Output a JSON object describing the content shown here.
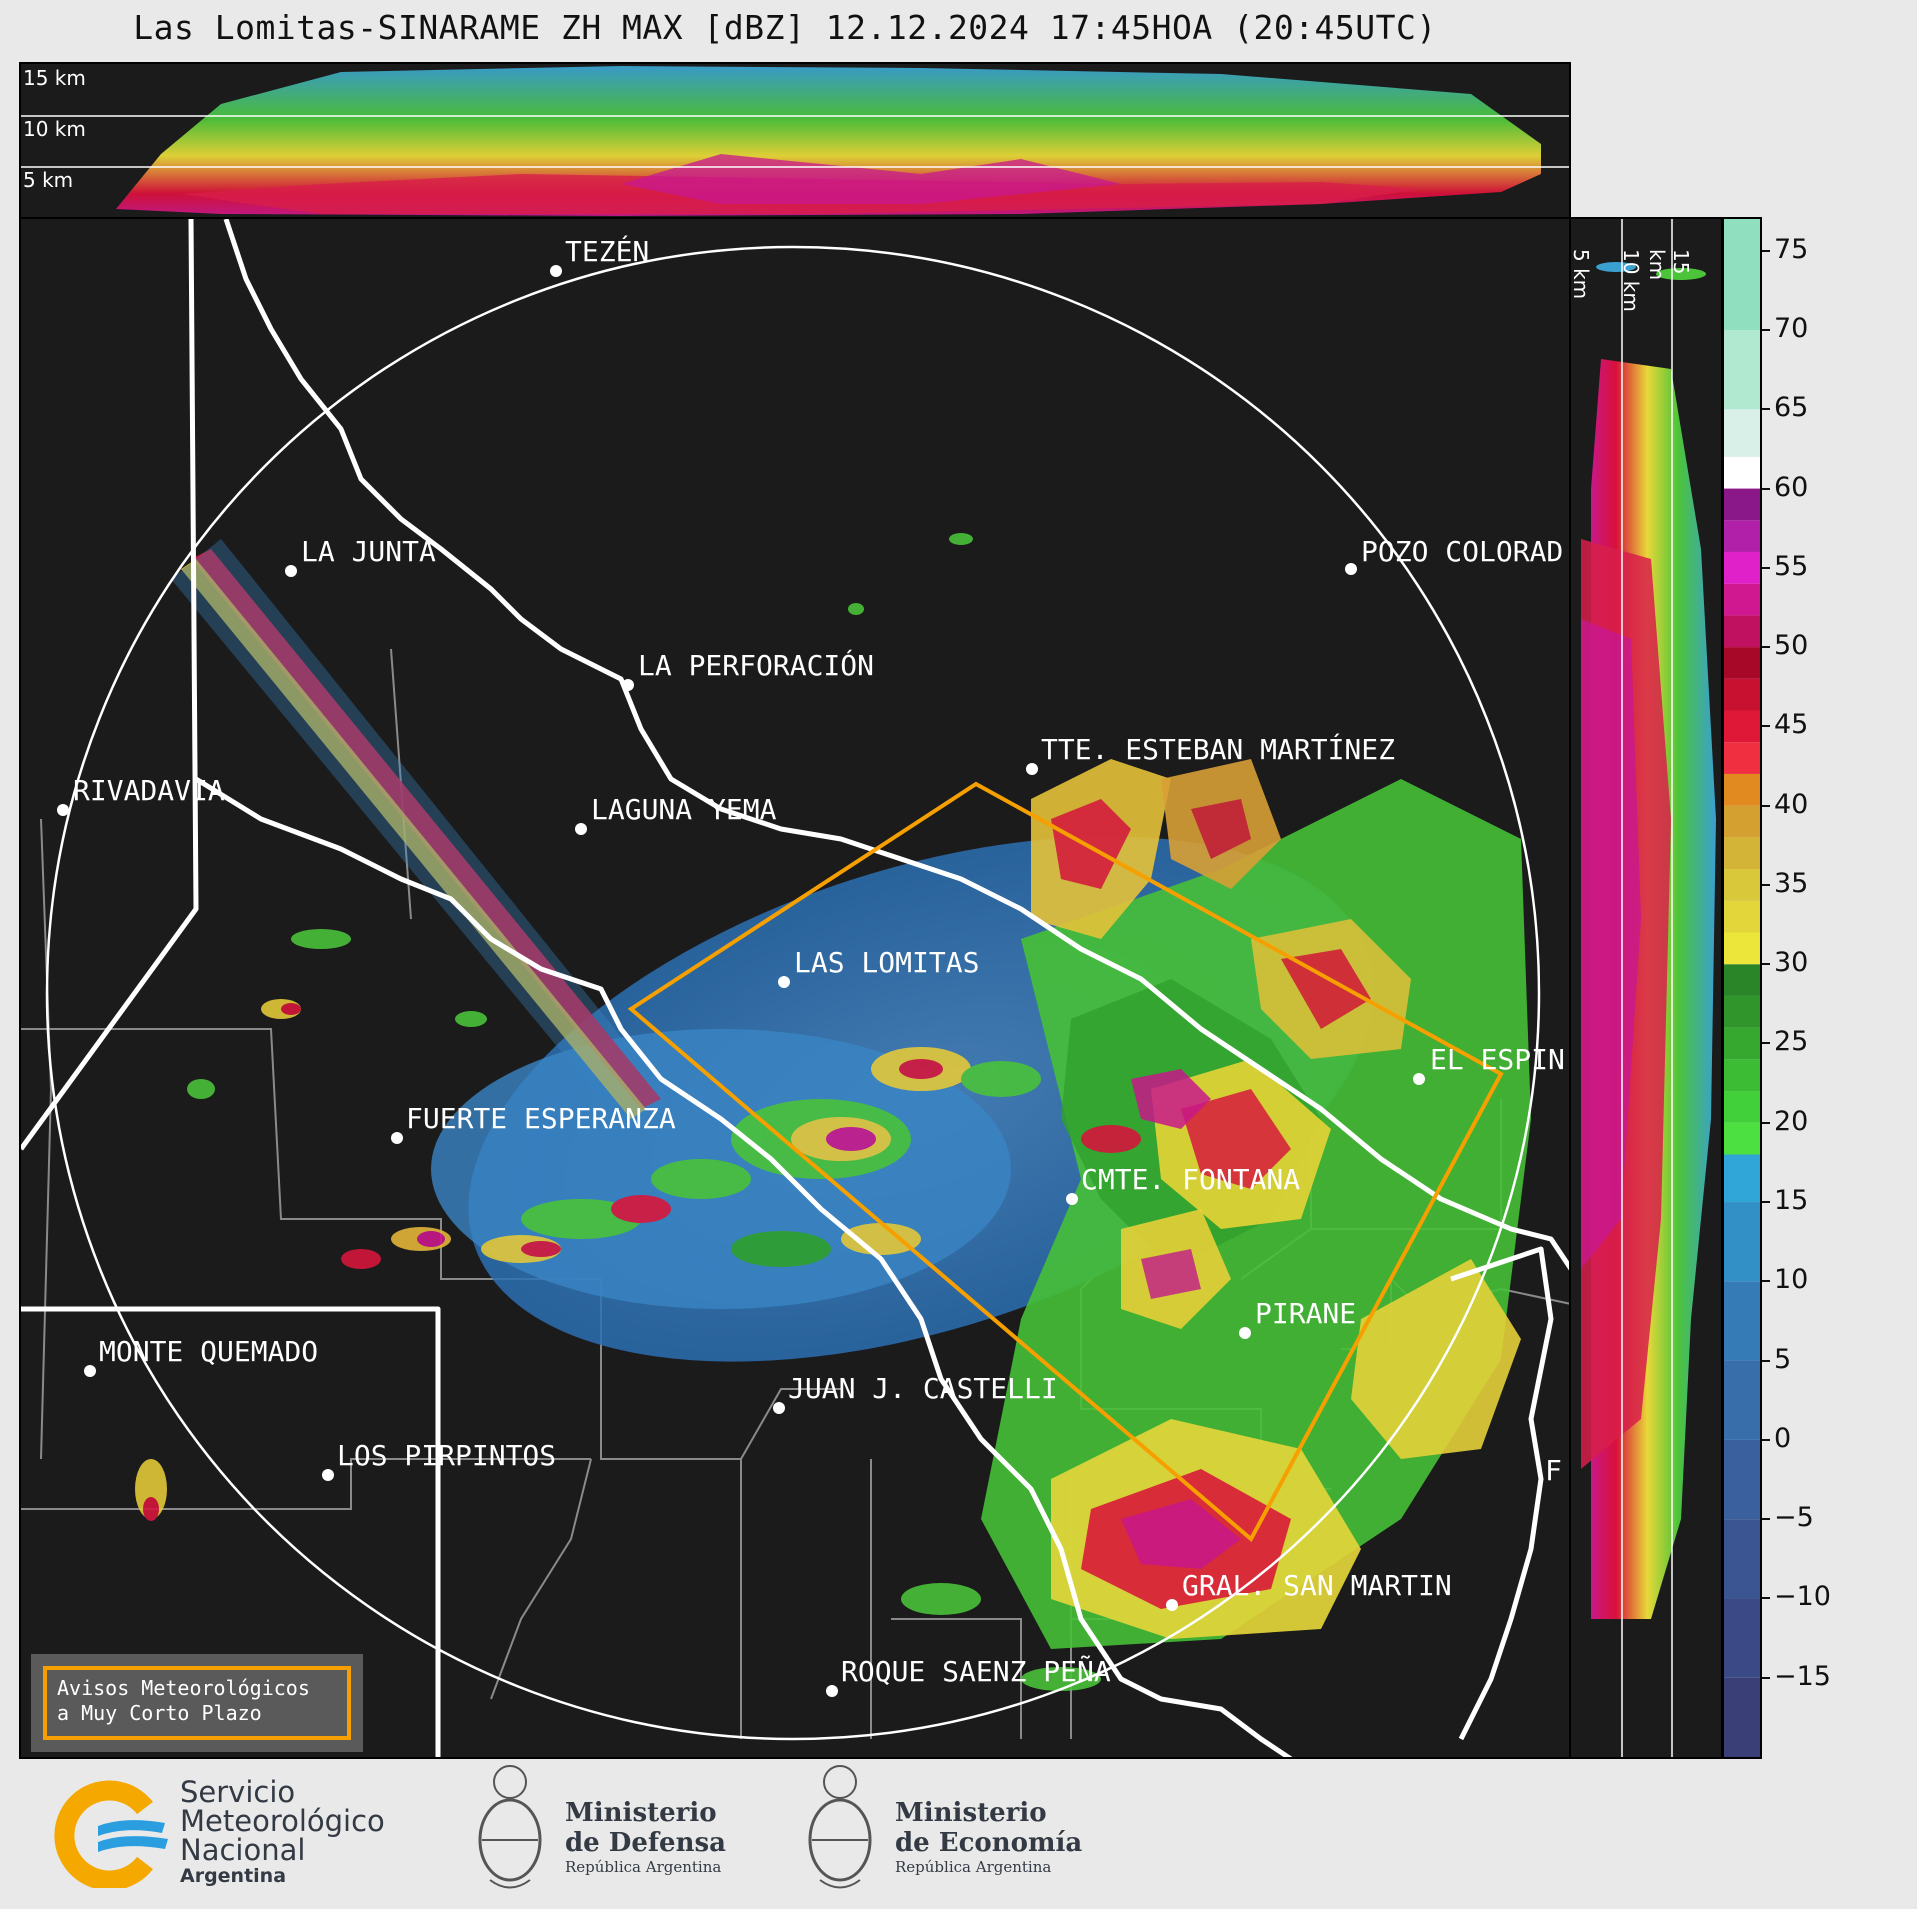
{
  "title": "Las Lomitas-SINARAME ZH MAX [dBZ] 12.12.2024 17:45HOA (20:45UTC)",
  "top_panel": {
    "labels": [
      "15 km",
      "10 km",
      "5 km"
    ]
  },
  "side_panel": {
    "labels": [
      "5 km",
      "10 km",
      "15 km"
    ]
  },
  "places": [
    {
      "id": "tezen",
      "label": "TEZÉN"
    },
    {
      "id": "la-junta",
      "label": "LA JUNTA"
    },
    {
      "id": "pozo-colorado",
      "label": "POZO COLORAD"
    },
    {
      "id": "la-perforacion",
      "label": "LA PERFORACIÓN"
    },
    {
      "id": "tte-esteban-martinez",
      "label": "TTE. ESTEBAN MARTÍNEZ"
    },
    {
      "id": "rivadavia",
      "label": "RIVADAVIA"
    },
    {
      "id": "laguna-yema",
      "label": "LAGUNA YEMA"
    },
    {
      "id": "las-lomitas",
      "label": "LAS LOMITAS"
    },
    {
      "id": "el-espin",
      "label": "EL ESPIN"
    },
    {
      "id": "fuerte-esperanza",
      "label": "FUERTE ESPERANZA"
    },
    {
      "id": "cmte-fontana",
      "label": "CMTE. FONTANA"
    },
    {
      "id": "pirane",
      "label": "PIRANE"
    },
    {
      "id": "monte-quemado",
      "label": "MONTE QUEMADO"
    },
    {
      "id": "juan-j-castelli",
      "label": "JUAN J. CASTELLI"
    },
    {
      "id": "los-pirpintos",
      "label": "LOS PIRPINTOS"
    },
    {
      "id": "gral-san-martin",
      "label": "GRAL. SAN MARTIN"
    },
    {
      "id": "roque-saenz-pena",
      "label": "ROQUE SAENZ PEÑA"
    },
    {
      "id": "f-edge",
      "label": "F"
    }
  ],
  "aviso": {
    "line1": "Avisos Meteorológicos",
    "line2": "a Muy Corto Plazo"
  },
  "colorbar": {
    "unit": "dBZ",
    "ticks": [
      "75",
      "70",
      "65",
      "60",
      "55",
      "50",
      "45",
      "40",
      "35",
      "30",
      "25",
      "20",
      "15",
      "10",
      "5",
      "0",
      "−5",
      "−10",
      "−15"
    ],
    "range": [
      -20,
      77
    ]
  },
  "colors": {
    "warning_polygon": "#f5a000",
    "background": "#1b1b1b",
    "border": "#ffffff"
  },
  "logos": {
    "smn": {
      "line1": "Servicio",
      "line2": "Meteorológico",
      "line3": "Nacional",
      "line4": "Argentina"
    },
    "defensa": {
      "line1": "Ministerio",
      "line2": "de Defensa",
      "line3": "República Argentina"
    },
    "economia": {
      "line1": "Ministerio",
      "line2": "de Economía",
      "line3": "República Argentina"
    }
  }
}
